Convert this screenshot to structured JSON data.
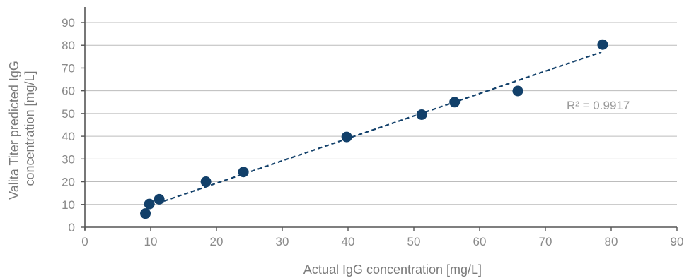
{
  "chart_data": {
    "type": "scatter",
    "title": "",
    "xlabel": "Actual IgG concentration [mg/L]",
    "ylabel_lines": [
      "Valita Titer predicted IgG",
      "concentration [mg/L]"
    ],
    "xlim": [
      0,
      90
    ],
    "ylim": [
      0,
      90
    ],
    "x_ticks": [
      "0",
      "10",
      "20",
      "30",
      "40",
      "50",
      "60",
      "70",
      "80",
      "90"
    ],
    "y_ticks": [
      "0",
      "10",
      "20",
      "30",
      "40",
      "50",
      "60",
      "70",
      "80",
      "90"
    ],
    "grid": {
      "horizontal": true,
      "vertical": false
    },
    "colors": {
      "points": "#12406a",
      "trendline": "#12406a",
      "grid": "#bcbcbc",
      "axis": "#555555",
      "text": "#8a8a8a"
    },
    "series": [
      {
        "x": [
          9.2,
          9.8,
          11.3,
          18.4,
          24.1,
          39.8,
          51.2,
          56.2,
          65.8,
          78.7
        ],
        "y": [
          6.0,
          10.2,
          12.3,
          20.0,
          24.3,
          39.7,
          49.5,
          55.0,
          59.9,
          80.3
        ]
      }
    ],
    "trendline": {
      "style": "dashed",
      "start": [
        10,
        9.5
      ],
      "end": [
        78.5,
        77
      ],
      "label": "R² = 0.9917"
    }
  }
}
